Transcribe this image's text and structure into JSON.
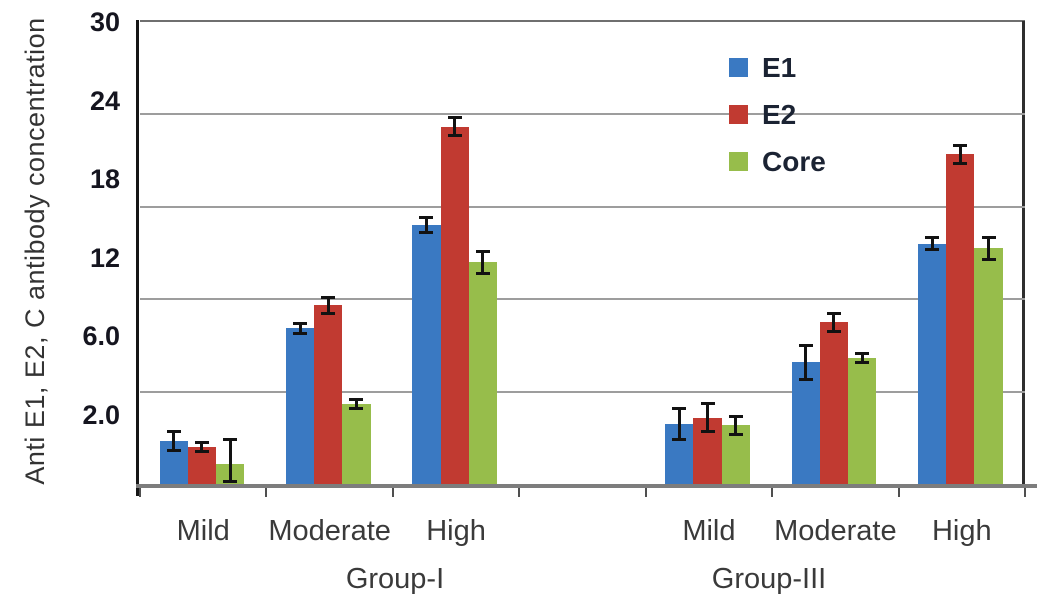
{
  "figure": {
    "background": "#ffffff",
    "axis_color": "#161616",
    "gridline_color": "#9d9d9d",
    "error_bar_color": "#121212"
  },
  "chart_data": {
    "type": "bar",
    "title": "",
    "xlabel": "",
    "ylabel": "Anti E1, E2, C antibody concentration",
    "ylim": [
      0,
      30
    ],
    "y_tick_labels": [
      "30",
      "24",
      "18",
      "12",
      "6.0",
      "2.0"
    ],
    "gridline_values": [
      24,
      18,
      12,
      6
    ],
    "grid": "horizontal",
    "legend_position": "inside-top-right",
    "series_names": [
      "E1",
      "E2",
      "Core"
    ],
    "series_colors": {
      "E1": "#3A79C2",
      "E2": "#C13A31",
      "Core": "#97BD4B"
    },
    "legend": [
      {
        "label": "E1",
        "color": "#3A79C2"
      },
      {
        "label": "E2",
        "color": "#C13A31"
      },
      {
        "label": "Core",
        "color": "#97BD4B"
      }
    ],
    "groups": [
      {
        "label": "Group-I",
        "categories": [
          "Mild",
          "Moderate",
          "High"
        ],
        "series": [
          {
            "name": "E1",
            "values": [
              2.8,
              10.1,
              16.8
            ],
            "errors": [
              0.6,
              0.3,
              0.5
            ]
          },
          {
            "name": "E2",
            "values": [
              2.4,
              11.6,
              23.2
            ],
            "errors": [
              0.3,
              0.5,
              0.6
            ]
          },
          {
            "name": "Core",
            "values": [
              1.3,
              5.2,
              14.4
            ],
            "errors": [
              1.6,
              0.3,
              0.7
            ]
          }
        ]
      },
      {
        "label": "Group-III",
        "categories": [
          "Mild",
          "Moderate",
          "High"
        ],
        "series": [
          {
            "name": "E1",
            "values": [
              3.9,
              7.9,
              15.6
            ],
            "errors": [
              1.0,
              1.1,
              0.4
            ]
          },
          {
            "name": "E2",
            "values": [
              4.3,
              10.5,
              21.4
            ],
            "errors": [
              0.9,
              0.6,
              0.6
            ]
          },
          {
            "name": "Core",
            "values": [
              3.8,
              8.2,
              15.3
            ],
            "errors": [
              0.6,
              0.3,
              0.7
            ]
          }
        ]
      }
    ]
  }
}
